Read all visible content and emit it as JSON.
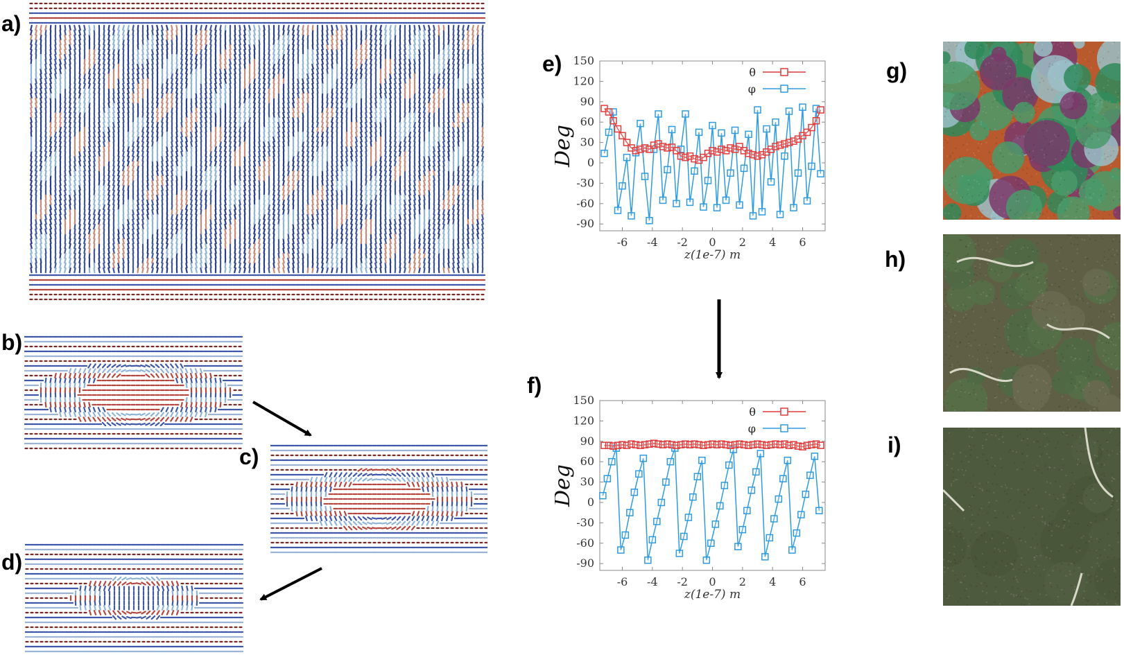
{
  "labels": {
    "a": "a)",
    "b": "b)",
    "c": "c)",
    "d": "d)",
    "e": "e)",
    "f": "f)",
    "g": "g)",
    "h": "h)",
    "i": "i)"
  },
  "colors": {
    "red": "#b5473f",
    "blue": "#3f57a8",
    "light_blue": "#8fb4d9",
    "dark_red": "#7a2a24",
    "theta": "#e03a3a",
    "phi": "#2e9be0"
  },
  "plots": [
    {
      "id": "e",
      "chart_data": {
        "type": "line",
        "xlabel": "z(1e-7) m",
        "ylabel": "Deg",
        "xlim": [
          -7.5,
          7.5
        ],
        "ylim": [
          -100,
          150
        ],
        "xticks": [
          -6,
          -4,
          -2,
          0,
          2,
          4,
          6
        ],
        "yticks": [
          150,
          120,
          90,
          60,
          30,
          0,
          -30,
          -60,
          -90
        ],
        "legend": "top-right",
        "series": [
          {
            "name": "θ",
            "color": "#e03a3a",
            "x": [
              -7.2,
              -6.9,
              -6.6,
              -6.3,
              -6.0,
              -5.7,
              -5.4,
              -5.1,
              -4.8,
              -4.5,
              -4.2,
              -3.9,
              -3.6,
              -3.3,
              -3.0,
              -2.7,
              -2.4,
              -2.1,
              -1.8,
              -1.5,
              -1.2,
              -0.9,
              -0.6,
              -0.3,
              0.0,
              0.3,
              0.6,
              0.9,
              1.2,
              1.5,
              1.8,
              2.1,
              2.4,
              2.7,
              3.0,
              3.3,
              3.6,
              3.9,
              4.2,
              4.5,
              4.8,
              5.1,
              5.4,
              5.7,
              6.0,
              6.3,
              6.6,
              6.9,
              7.2
            ],
            "y": [
              80,
              75,
              62,
              50,
              40,
              30,
              22,
              18,
              20,
              22,
              20,
              26,
              28,
              24,
              22,
              23,
              18,
              10,
              8,
              10,
              6,
              4,
              8,
              14,
              18,
              16,
              20,
              18,
              22,
              20,
              24,
              18,
              14,
              12,
              10,
              12,
              16,
              20,
              24,
              26,
              28,
              30,
              32,
              35,
              40,
              45,
              52,
              62,
              78
            ]
          },
          {
            "name": "φ",
            "color": "#2e9be0",
            "x": [
              -7.2,
              -6.9,
              -6.6,
              -6.3,
              -6.0,
              -5.7,
              -5.4,
              -5.1,
              -4.8,
              -4.5,
              -4.2,
              -3.9,
              -3.6,
              -3.3,
              -3.0,
              -2.7,
              -2.4,
              -2.1,
              -1.8,
              -1.5,
              -1.2,
              -0.9,
              -0.6,
              -0.3,
              0.0,
              0.3,
              0.6,
              0.9,
              1.2,
              1.5,
              1.8,
              2.1,
              2.4,
              2.7,
              3.0,
              3.3,
              3.6,
              3.9,
              4.2,
              4.5,
              4.8,
              5.1,
              5.4,
              5.7,
              6.0,
              6.3,
              6.6,
              6.9,
              7.2
            ],
            "y": [
              14,
              45,
              75,
              -70,
              -34,
              8,
              -78,
              15,
              58,
              -20,
              -85,
              20,
              72,
              -55,
              -10,
              49,
              -60,
              20,
              72,
              -58,
              -12,
              45,
              -65,
              -26,
              55,
              -66,
              44,
              -55,
              -15,
              48,
              -62,
              -8,
              42,
              -78,
              78,
              -72,
              50,
              -28,
              60,
              -76,
              10,
              76,
              -66,
              -15,
              82,
              -56,
              -5,
              80,
              -16
            ]
          }
        ]
      }
    },
    {
      "id": "f",
      "chart_data": {
        "type": "line",
        "xlabel": "z(1e-7) m",
        "ylabel": "Deg",
        "xlim": [
          -7.5,
          7.5
        ],
        "ylim": [
          -100,
          150
        ],
        "xticks": [
          -6,
          -4,
          -2,
          0,
          2,
          4,
          6
        ],
        "yticks": [
          150,
          120,
          90,
          60,
          30,
          0,
          -30,
          -60,
          -90
        ],
        "legend": "top-right",
        "series": [
          {
            "name": "θ",
            "color": "#e03a3a",
            "x": [
              -7.2,
              -6.9,
              -6.6,
              -6.3,
              -6.0,
              -5.7,
              -5.4,
              -5.1,
              -4.8,
              -4.5,
              -4.2,
              -3.9,
              -3.6,
              -3.3,
              -3.0,
              -2.7,
              -2.4,
              -2.1,
              -1.8,
              -1.5,
              -1.2,
              -0.9,
              -0.6,
              -0.3,
              0.0,
              0.3,
              0.6,
              0.9,
              1.2,
              1.5,
              1.8,
              2.1,
              2.4,
              2.7,
              3.0,
              3.3,
              3.6,
              3.9,
              4.2,
              4.5,
              4.8,
              5.1,
              5.4,
              5.7,
              6.0,
              6.3,
              6.6,
              6.9,
              7.2
            ],
            "y": [
              84,
              84,
              83,
              84,
              85,
              84,
              86,
              85,
              84,
              85,
              86,
              87,
              86,
              85,
              86,
              85,
              84,
              85,
              86,
              85,
              86,
              85,
              84,
              85,
              86,
              85,
              86,
              85,
              84,
              85,
              86,
              85,
              84,
              85,
              86,
              85,
              84,
              85,
              86,
              85,
              86,
              84,
              85,
              83,
              82,
              84,
              85,
              86,
              84
            ]
          },
          {
            "name": "φ",
            "color": "#2e9be0",
            "x": [
              -7.3,
              -7.0,
              -6.7,
              -6.4,
              -6.1,
              -5.8,
              -5.5,
              -5.2,
              -4.9,
              -4.6,
              -4.3,
              -4.0,
              -3.7,
              -3.4,
              -3.1,
              -2.8,
              -2.5,
              -2.2,
              -1.9,
              -1.6,
              -1.3,
              -1.0,
              -0.7,
              -0.4,
              -0.1,
              0.2,
              0.5,
              0.8,
              1.1,
              1.4,
              1.7,
              2.0,
              2.3,
              2.6,
              2.9,
              3.2,
              3.5,
              3.8,
              4.1,
              4.4,
              4.7,
              5.0,
              5.3,
              5.6,
              5.9,
              6.2,
              6.5,
              6.8,
              7.1
            ],
            "y": [
              10,
              35,
              60,
              80,
              -70,
              -48,
              -15,
              15,
              42,
              65,
              -85,
              -55,
              -28,
              0,
              30,
              60,
              80,
              -75,
              -50,
              -22,
              8,
              38,
              62,
              -85,
              -60,
              -32,
              -5,
              25,
              55,
              78,
              -65,
              -40,
              -12,
              18,
              45,
              72,
              -80,
              -52,
              -24,
              5,
              35,
              62,
              -70,
              -45,
              -18,
              12,
              40,
              68,
              -12
            ]
          }
        ]
      }
    }
  ]
}
